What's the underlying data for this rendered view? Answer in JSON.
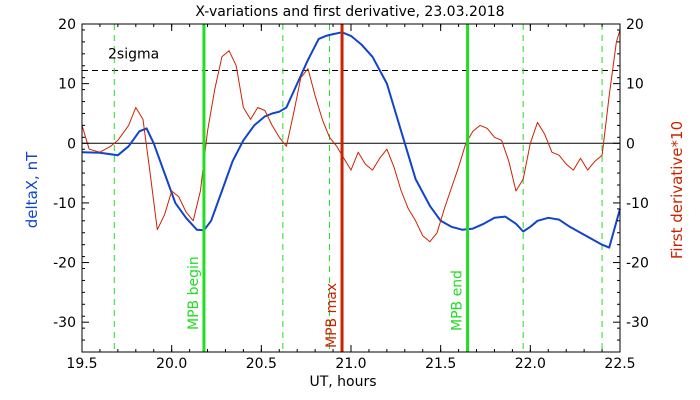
{
  "chart_data": {
    "type": "line",
    "title": "X-variations and first derivative, 23.03.2018",
    "xlabel": "UT, hours",
    "ylabel_left": "deltaX, nT",
    "ylabel_right": "First derivative*10",
    "xlim": [
      19.5,
      22.5
    ],
    "ylim": [
      -35,
      20
    ],
    "x_ticks": [
      19.5,
      20.0,
      20.5,
      21.0,
      21.5,
      22.0,
      22.5
    ],
    "x_tick_labels": [
      "19.5",
      "20.0",
      "20.5",
      "21.0",
      "21.5",
      "22.0",
      "22.5"
    ],
    "y_ticks": [
      -30,
      -20,
      -10,
      0,
      10,
      20
    ],
    "y_tick_labels": [
      "-30",
      "-20",
      "-10",
      "0",
      "10",
      "20"
    ],
    "threshold": {
      "label": "2sigma",
      "value": 12.2
    },
    "zero_line": 0,
    "markers": [
      {
        "label": "MPB begin",
        "x": 20.18,
        "color": "#22dd22"
      },
      {
        "label": "MPB max",
        "x": 20.95,
        "color": "#cc2200"
      },
      {
        "label": "MPB end",
        "x": 21.65,
        "color": "#22dd22"
      }
    ],
    "dashed_lines_x": [
      19.68,
      20.62,
      20.88,
      21.96,
      22.4
    ],
    "series": [
      {
        "color": "#1144cc",
        "x": [
          19.5,
          19.6,
          19.7,
          19.76,
          19.82,
          19.86,
          19.9,
          19.96,
          20.02,
          20.08,
          20.14,
          20.18,
          20.22,
          20.28,
          20.34,
          20.4,
          20.46,
          20.52,
          20.56,
          20.6,
          20.64,
          20.7,
          20.76,
          20.82,
          20.86,
          20.9,
          20.95,
          21.0,
          21.06,
          21.12,
          21.2,
          21.28,
          21.36,
          21.44,
          21.5,
          21.56,
          21.62,
          21.68,
          21.74,
          21.8,
          21.86,
          21.92,
          21.96,
          22.0,
          22.04,
          22.1,
          22.16,
          22.22,
          22.28,
          22.34,
          22.4,
          22.44,
          22.5
        ],
        "values": [
          -1.5,
          -1.6,
          -2.0,
          -0.5,
          2.0,
          2.5,
          0.0,
          -5.0,
          -10.0,
          -12.5,
          -14.5,
          -14.6,
          -13.0,
          -8.0,
          -3.0,
          0.5,
          3.0,
          4.5,
          5.0,
          5.3,
          6.0,
          10.0,
          14.0,
          17.5,
          18.0,
          18.3,
          18.6,
          18.0,
          16.5,
          14.5,
          10.0,
          2.0,
          -6.0,
          -10.5,
          -13.0,
          -14.0,
          -14.5,
          -14.3,
          -13.5,
          -12.5,
          -12.3,
          -13.5,
          -14.8,
          -14.0,
          -13.0,
          -12.5,
          -12.8,
          -14.0,
          -15.0,
          -16.0,
          -17.0,
          -17.5,
          -11.0
        ]
      },
      {
        "color": "#cc2200",
        "x": [
          19.5,
          19.54,
          19.6,
          19.66,
          19.7,
          19.76,
          19.8,
          19.84,
          19.88,
          19.92,
          19.96,
          20.0,
          20.04,
          20.08,
          20.12,
          20.16,
          20.2,
          20.24,
          20.28,
          20.32,
          20.36,
          20.4,
          20.44,
          20.48,
          20.52,
          20.56,
          20.6,
          20.64,
          20.68,
          20.72,
          20.76,
          20.8,
          20.84,
          20.88,
          20.92,
          20.96,
          21.0,
          21.04,
          21.08,
          21.12,
          21.16,
          21.2,
          21.24,
          21.28,
          21.32,
          21.36,
          21.4,
          21.44,
          21.48,
          21.52,
          21.56,
          21.6,
          21.64,
          21.68,
          21.72,
          21.76,
          21.8,
          21.84,
          21.88,
          21.92,
          21.96,
          22.0,
          22.04,
          22.08,
          22.12,
          22.16,
          22.2,
          22.24,
          22.28,
          22.32,
          22.36,
          22.4,
          22.44,
          22.48,
          22.5
        ],
        "values": [
          3.0,
          -1.0,
          -1.5,
          -0.5,
          0.5,
          3.0,
          6.0,
          4.0,
          -5.0,
          -14.5,
          -12.0,
          -8.0,
          -9.0,
          -11.5,
          -13.0,
          -8.0,
          2.0,
          9.0,
          14.5,
          15.5,
          13.0,
          6.0,
          4.0,
          6.0,
          5.5,
          3.0,
          1.0,
          -0.5,
          5.0,
          11.0,
          12.5,
          8.0,
          4.0,
          1.0,
          -0.5,
          -2.5,
          -4.5,
          -1.5,
          -3.5,
          -4.5,
          -2.5,
          -1.0,
          -4.0,
          -8.0,
          -11.0,
          -13.0,
          -15.5,
          -16.5,
          -15.0,
          -11.0,
          -7.5,
          -4.0,
          0.0,
          2.0,
          3.0,
          2.5,
          1.0,
          0.5,
          -3.0,
          -8.0,
          -6.0,
          0.0,
          3.5,
          1.5,
          -1.5,
          -2.0,
          -3.5,
          -4.5,
          -2.5,
          -4.5,
          -3.0,
          -2.0,
          8.0,
          17.0,
          19.0
        ]
      }
    ]
  }
}
